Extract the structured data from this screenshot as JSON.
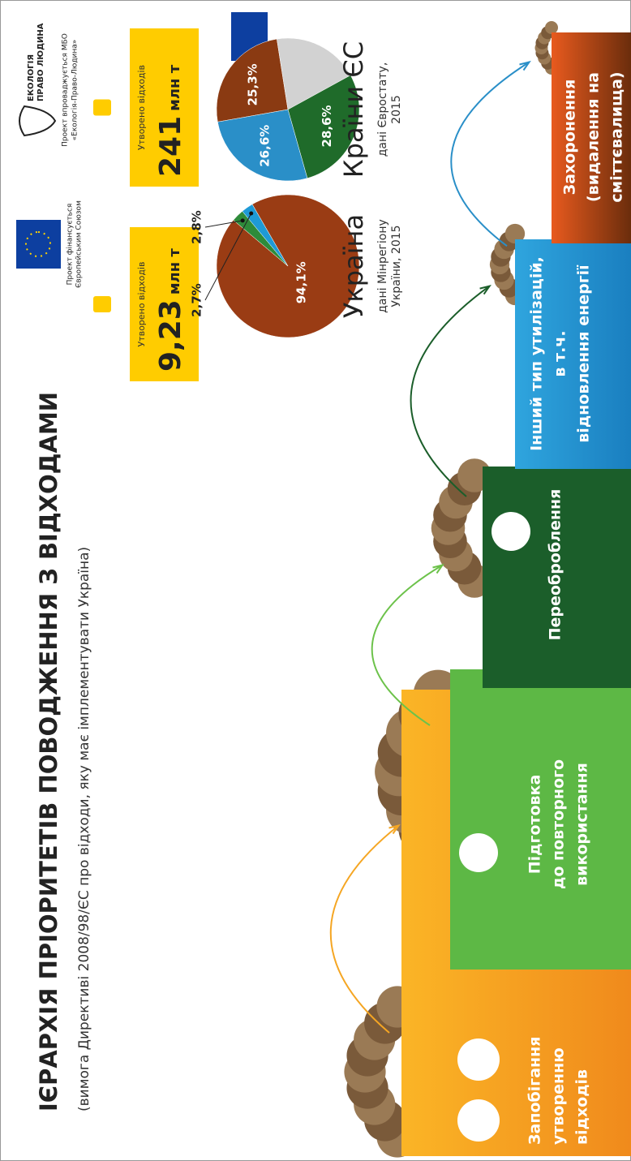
{
  "header": {
    "title": "ІЄРАРХІЯ ПРІОРИТЕТІВ ПОВОДЖЕННЯ З ВІДХОДАМИ",
    "subtitle": "(вимога Директиві 2008/98/ЄС про відходи, яку має імплементувати Україна)"
  },
  "sponsors": {
    "eu": [
      "Проект фінансується",
      "Європейським Союзом"
    ],
    "eco_logo": [
      "ЕКОЛОГІЯ",
      "ПРАВО ЛЮДИНА"
    ],
    "eco": [
      "Проект впроваджується МБО",
      "«Екологія-Право-Людина»"
    ]
  },
  "steps": [
    {
      "lines": [
        "Запобігання",
        "утворенню",
        "відходів"
      ]
    },
    {
      "lines": [
        "Підготовка",
        "до повторного",
        "використання"
      ]
    },
    {
      "lines": [
        "Переоброблення"
      ]
    },
    {
      "lines": [
        "Інший тип утилізацій,",
        "в т.ч.",
        "відновлення енергії"
      ]
    },
    {
      "lines": [
        "Захоронення",
        "(видалення на",
        "сміттєвалища)"
      ]
    }
  ],
  "pies": [
    {
      "box_label": "Утворено відходів",
      "box_value": "9,23",
      "box_unit": "млн т",
      "name": "Україна",
      "source": [
        "дані Мінрегіону",
        "України, 2015"
      ],
      "values": [
        94.1,
        2.8,
        2.7
      ],
      "value_labels": [
        "94,1%",
        "2,8%",
        "2,7%"
      ],
      "colors": [
        "#9a3c14",
        "#2e8b3a",
        "#1e9ad6"
      ]
    },
    {
      "box_label": "Утворено відходів",
      "box_value": "241",
      "box_unit": "млн т",
      "name": "Країни ЄС",
      "source": [
        "дані Євростату,",
        "2015"
      ],
      "values": [
        25.3,
        19.5,
        28.6,
        26.6
      ],
      "value_labels": [
        "25,3%",
        null,
        "28,6%",
        "26,6%"
      ],
      "colors": [
        "#8a3a12",
        "#d2d2d2",
        "#1f6b2a",
        "#2a8fc8"
      ]
    }
  ]
}
